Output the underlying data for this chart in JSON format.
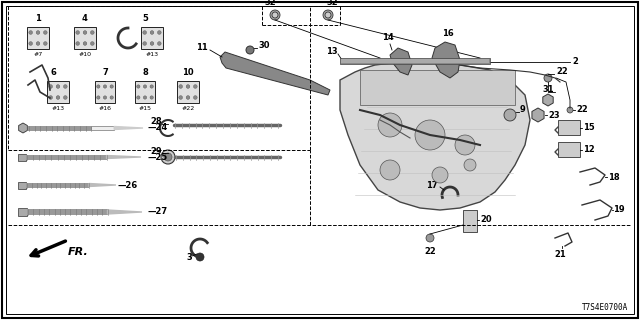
{
  "diagram_id": "T7S4E0700A",
  "bg_color": "#ffffff",
  "border_color": "#000000",
  "line_color": "#333333",
  "text_color": "#000000"
}
